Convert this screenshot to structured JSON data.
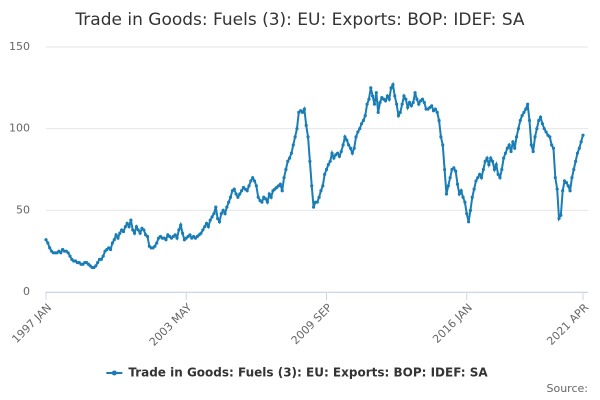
{
  "chart_data": {
    "type": "line",
    "title": "Trade in Goods: Fuels (3): EU: Exports: BOP: IDEF: SA",
    "source": "Source:",
    "categories": [
      "1997 JAN",
      null,
      null,
      null,
      null,
      null,
      null,
      null,
      null,
      null,
      null,
      null,
      null,
      null,
      null,
      null,
      null,
      null,
      null,
      null,
      null,
      null,
      null,
      null,
      null,
      null,
      null,
      null,
      null,
      null,
      null,
      null,
      null,
      null,
      null,
      null,
      null,
      null,
      null,
      null,
      null,
      null,
      null,
      null,
      null,
      null,
      null,
      null,
      null,
      null,
      null,
      null,
      null,
      null,
      null,
      null,
      null,
      null,
      null,
      null,
      null,
      null,
      null,
      null,
      null,
      null,
      null,
      null,
      null,
      null,
      null,
      null,
      null,
      null,
      null,
      null,
      "2003 MAY",
      null,
      null,
      null,
      null,
      null,
      null,
      null,
      null,
      null,
      null,
      null,
      null,
      null,
      null,
      null,
      null,
      null,
      null,
      null,
      null,
      null,
      null,
      null,
      null,
      null,
      null,
      null,
      null,
      null,
      null,
      null,
      null,
      null,
      null,
      null,
      null,
      null,
      null,
      null,
      null,
      null,
      null,
      null,
      null,
      null,
      null,
      null,
      null,
      null,
      null,
      null,
      null,
      null,
      null,
      null,
      null,
      null,
      null,
      null,
      null,
      null,
      null,
      null,
      null,
      null,
      null,
      null,
      null,
      null,
      null,
      null,
      null,
      null,
      null,
      null,
      "2009 SEP",
      null,
      null,
      null,
      null,
      null,
      null,
      null,
      null,
      null,
      null,
      null,
      null,
      null,
      null,
      null,
      null,
      null,
      null,
      null,
      null,
      null,
      null,
      null,
      null,
      null,
      null,
      null,
      null,
      null,
      null,
      null,
      null,
      null,
      null,
      null,
      null,
      null,
      null,
      null,
      null,
      null,
      null,
      null,
      null,
      null,
      null,
      null,
      null,
      null,
      null,
      null,
      null,
      null,
      null,
      null,
      null,
      null,
      null,
      null,
      null,
      null,
      null,
      null,
      null,
      null,
      null,
      null,
      null,
      null,
      null,
      null,
      null,
      null,
      null,
      null,
      "2016 JAN",
      null,
      null,
      null,
      null,
      null,
      null,
      null,
      null,
      null,
      null,
      null,
      null,
      null,
      null,
      null,
      null,
      null,
      null,
      null,
      null,
      null,
      null,
      null,
      null,
      null,
      null,
      null,
      null,
      null,
      null,
      null,
      null,
      null,
      null,
      null,
      null,
      null,
      null,
      null,
      null,
      null,
      null,
      null,
      null,
      null,
      null,
      null,
      null,
      null,
      null,
      null,
      null,
      null,
      null,
      null,
      null,
      null,
      null,
      null,
      null,
      null,
      null,
      "2021 APR"
    ],
    "series": [
      {
        "name": "Trade in Goods: Fuels (3): EU: Exports: BOP: IDEF: SA",
        "color": "#1a7db5",
        "values": [
          32,
          30,
          27,
          25,
          24,
          24,
          24,
          25,
          24,
          26,
          25,
          25,
          24,
          22,
          20,
          19,
          19,
          18,
          18,
          17,
          17,
          18,
          18,
          17,
          16,
          15,
          15,
          16,
          18,
          20,
          20,
          22,
          25,
          26,
          27,
          26,
          30,
          32,
          35,
          33,
          36,
          38,
          37,
          40,
          42,
          40,
          44,
          38,
          36,
          40,
          38,
          36,
          39,
          38,
          35,
          34,
          28,
          27,
          27,
          28,
          30,
          33,
          34,
          33,
          33,
          32,
          35,
          34,
          33,
          34,
          35,
          33,
          38,
          41,
          36,
          32,
          33,
          34,
          35,
          33,
          34,
          33,
          34,
          35,
          36,
          38,
          40,
          42,
          40,
          44,
          46,
          48,
          52,
          45,
          43,
          48,
          50,
          48,
          52,
          55,
          58,
          62,
          63,
          60,
          58,
          60,
          62,
          64,
          63,
          62,
          65,
          68,
          70,
          68,
          65,
          58,
          56,
          55,
          58,
          57,
          55,
          60,
          58,
          62,
          63,
          64,
          65,
          66,
          62,
          70,
          75,
          80,
          82,
          85,
          90,
          95,
          100,
          110,
          111,
          110,
          112,
          102,
          95,
          80,
          65,
          52,
          55,
          55,
          58,
          62,
          65,
          72,
          75,
          78,
          80,
          85,
          82,
          84,
          85,
          83,
          86,
          90,
          95,
          93,
          90,
          88,
          85,
          88,
          95,
          98,
          100,
          103,
          105,
          108,
          115,
          118,
          125,
          120,
          115,
          122,
          110,
          116,
          119,
          118,
          117,
          120,
          118,
          125,
          127,
          120,
          115,
          108,
          110,
          115,
          120,
          118,
          113,
          116,
          114,
          116,
          122,
          118,
          115,
          117,
          118,
          116,
          112,
          112,
          113,
          114,
          111,
          112,
          110,
          105,
          95,
          90,
          75,
          60,
          65,
          70,
          75,
          76,
          74,
          66,
          60,
          62,
          58,
          55,
          48,
          43,
          50,
          58,
          63,
          68,
          70,
          72,
          70,
          75,
          80,
          82,
          78,
          82,
          80,
          75,
          78,
          72,
          70,
          75,
          82,
          85,
          88,
          90,
          86,
          92,
          88,
          95,
          100,
          105,
          108,
          110,
          112,
          115,
          105,
          90,
          86,
          95,
          100,
          105,
          107,
          103,
          100,
          98,
          96,
          95,
          90,
          88,
          70,
          63,
          45,
          47,
          62,
          68,
          67,
          65,
          62,
          70,
          75,
          80,
          85,
          88,
          92,
          96
        ]
      }
    ],
    "ylim": [
      0,
      150
    ],
    "yticks": [
      0,
      50,
      100,
      150
    ],
    "grid": true
  }
}
